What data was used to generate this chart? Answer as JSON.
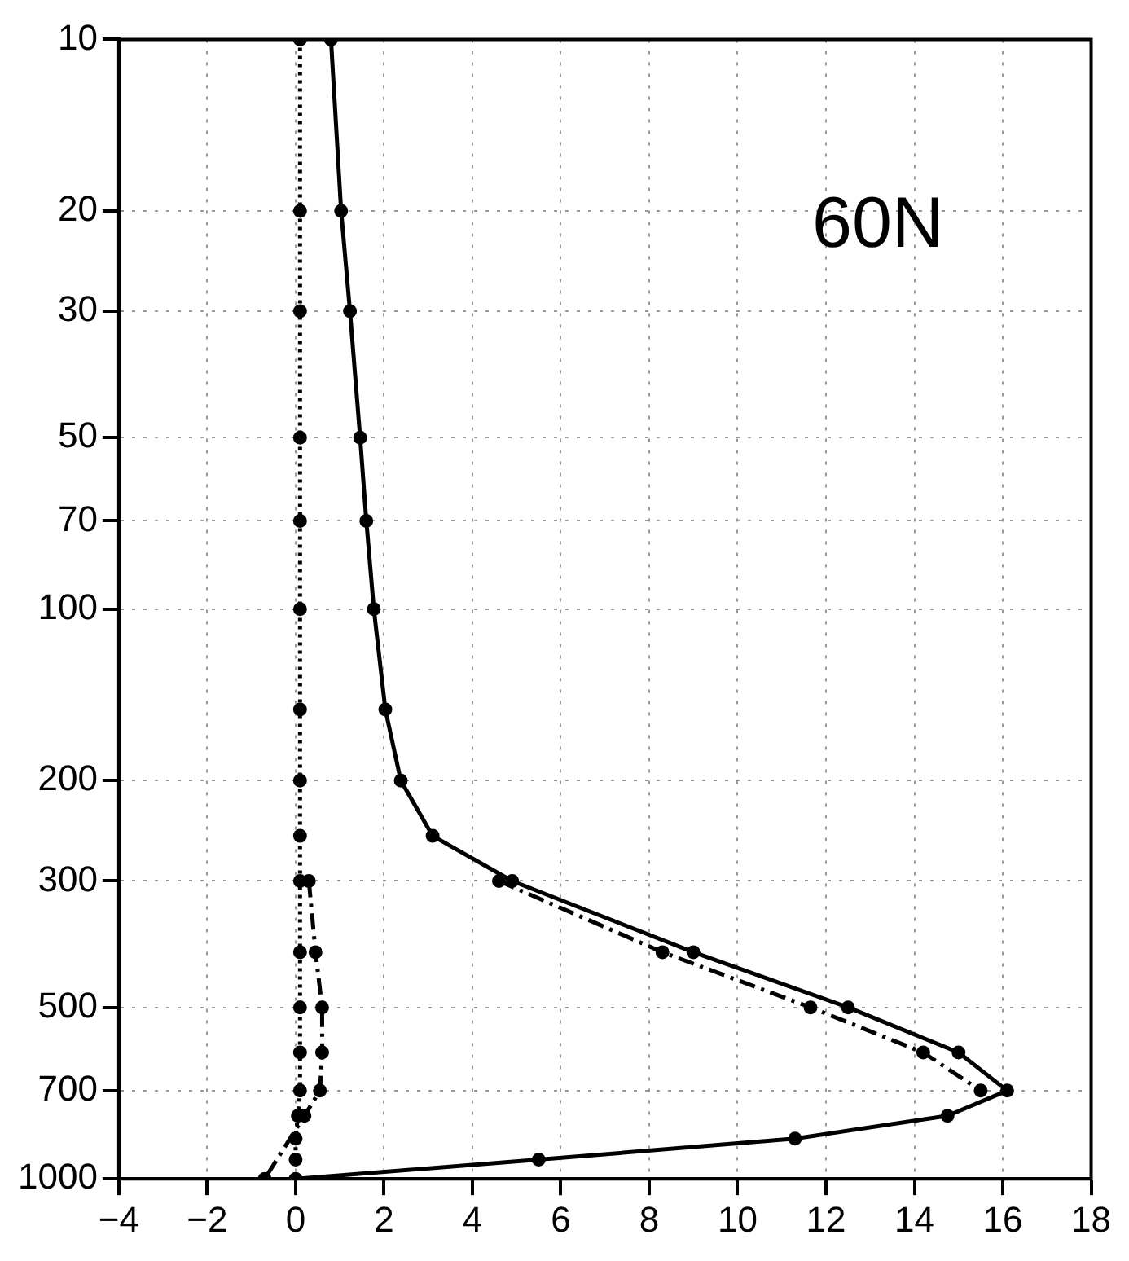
{
  "chart_data": {
    "type": "line",
    "annotations": [
      "60N"
    ],
    "xlim": [
      -4,
      18
    ],
    "xticks": [
      -4,
      -2,
      0,
      2,
      4,
      6,
      8,
      10,
      12,
      14,
      16,
      18
    ],
    "ylim": [
      1000,
      10
    ],
    "yticks": [
      10,
      20,
      30,
      50,
      70,
      100,
      200,
      300,
      500,
      700,
      1000
    ],
    "log": "y",
    "grid": true,
    "marker": "circle",
    "series": [
      {
        "color": "#000000",
        "line_style": "solid",
        "x": [
          0.8,
          1.03,
          1.23,
          1.46,
          1.6,
          1.77,
          2.03,
          2.38,
          3.1,
          4.9,
          9.0,
          12.5,
          15.0,
          16.1,
          14.75,
          11.3,
          5.5,
          0.0
        ],
        "values": [
          10,
          20,
          30,
          50,
          70,
          100,
          150,
          200,
          250,
          300,
          400,
          500,
          600,
          700,
          775,
          850,
          925,
          1000
        ]
      },
      {
        "color": "#000000",
        "line_style": "dashed",
        "x": [
          4.6,
          8.3,
          11.65,
          14.2,
          15.5
        ],
        "values": [
          300,
          400,
          500,
          600,
          700
        ]
      },
      {
        "color": "#000000",
        "line_style": "dotted",
        "x": [
          0.1,
          0.1,
          0.1,
          0.1,
          0.1,
          0.1,
          0.1,
          0.1,
          0.1,
          0.1,
          0.1,
          0.1,
          0.1,
          0.1,
          0.05,
          0.0,
          0.0
        ],
        "values": [
          10,
          20,
          30,
          50,
          70,
          100,
          150,
          200,
          250,
          300,
          400,
          500,
          600,
          700,
          775,
          850,
          925
        ]
      },
      {
        "color": "#000000",
        "line_style": "dashed",
        "x": [
          0.3,
          0.45,
          0.6,
          0.6,
          0.55,
          0.2,
          -0.7
        ],
        "values": [
          300,
          400,
          500,
          600,
          700,
          775,
          1000
        ]
      }
    ]
  }
}
